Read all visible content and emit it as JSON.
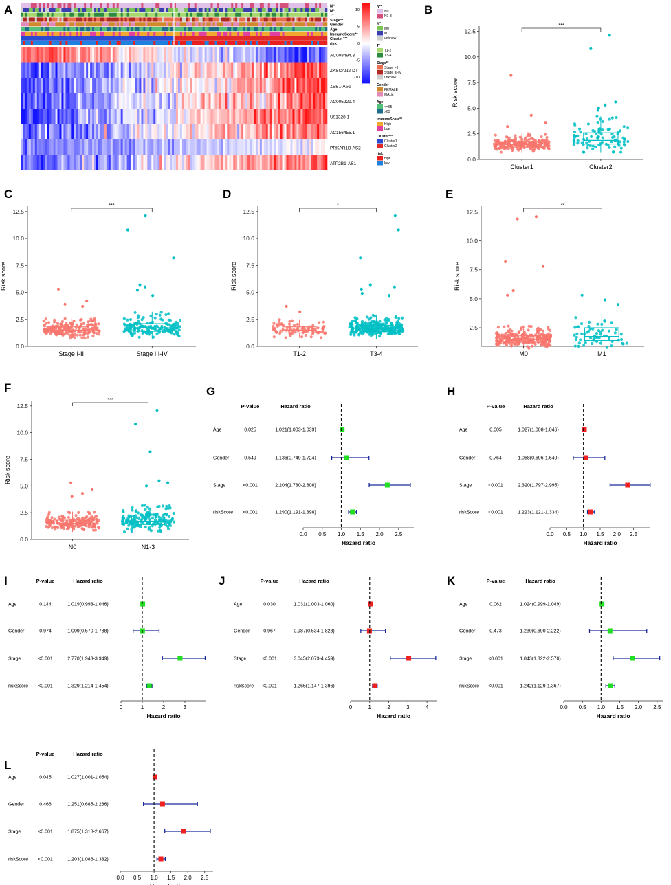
{
  "figure": {
    "panels": {
      "A": {
        "label": "A",
        "annotation_rows": [
          "N**",
          "M*",
          "T*",
          "Stage**",
          "Gender",
          "Age",
          "ImmuneScore**",
          "Cluster***",
          "risk"
        ],
        "genes": [
          "AC008494.3",
          "ZKSCAN2-DT",
          "ZEB1-AS1",
          "AC005229.4",
          "U91328.1",
          "AC156455.1",
          "PRKAR1B-AS2",
          "ATP2B1-AS1"
        ],
        "colorbar_ticks": [
          "10",
          "5",
          "0",
          "-5",
          "-10"
        ],
        "legend": [
          {
            "title": "N**",
            "items": [
              {
                "label": "N0",
                "color": "#e0c0e8"
              },
              {
                "label": "N1-3",
                "color": "#d4507a"
              }
            ]
          },
          {
            "title": "M*",
            "items": [
              {
                "label": "M0",
                "color": "#7cc458"
              },
              {
                "label": "M1",
                "color": "#3a3fb0"
              },
              {
                "label": "unknow",
                "color": "#cfcfcf"
              }
            ]
          },
          {
            "title": "T*",
            "items": [
              {
                "label": "T1-2",
                "color": "#a8d870"
              },
              {
                "label": "T3-4",
                "color": "#2d8a3e"
              }
            ]
          },
          {
            "title": "Stage**",
            "items": [
              {
                "label": "Stage I-II",
                "color": "#e86e4e"
              },
              {
                "label": "Stage III-IV",
                "color": "#b02a24"
              },
              {
                "label": "unknow",
                "color": "#cfcfcf"
              }
            ]
          },
          {
            "title": "Gender",
            "items": [
              {
                "label": "FEMALE",
                "color": "#d08a2e"
              },
              {
                "label": "MALE",
                "color": "#e08ab8"
              }
            ]
          },
          {
            "title": "Age",
            "items": [
              {
                "label": "<=65",
                "color": "#52c27a"
              },
              {
                "label": ">65",
                "color": "#1f6e8a"
              }
            ]
          },
          {
            "title": "ImmuneScore**",
            "items": [
              {
                "label": "High",
                "color": "#f0a830"
              },
              {
                "label": "Low",
                "color": "#e040a0"
              }
            ]
          },
          {
            "title": "Cluster***",
            "items": [
              {
                "label": "Cluster1",
                "color": "#2a4bd0"
              },
              {
                "label": "Cluster2",
                "color": "#e02a2a"
              }
            ]
          },
          {
            "title": "risk",
            "items": [
              {
                "label": "high",
                "color": "#e82020"
              },
              {
                "label": "low",
                "color": "#2080e0"
              }
            ]
          }
        ]
      },
      "boxplots": [
        {
          "label": "B",
          "ylabel": "Risk score",
          "yticks": [
            "0.0",
            "2.5",
            "5.0",
            "7.5",
            "10.0",
            "12.5"
          ],
          "sig": "***",
          "groups": [
            "Cluster1",
            "Cluster2"
          ],
          "medians": [
            1.45,
            1.85
          ],
          "q1": [
            1.2,
            1.5
          ],
          "q3": [
            1.75,
            2.6
          ],
          "wlo": [
            0.7,
            0.7
          ],
          "whi": [
            2.6,
            4.2
          ],
          "outliers": [
            [
              8.2,
              4.3,
              3.6,
              3.2
            ],
            [
              12.1,
              10.8,
              5.6,
              5.3,
              5.0,
              4.8
            ]
          ],
          "n": [
            210,
            90
          ]
        },
        {
          "label": "C",
          "ylabel": "Risk score",
          "yticks": [
            "0.0",
            "2.5",
            "5.0",
            "7.5",
            "10.0",
            "12.5"
          ],
          "sig": "***",
          "groups": [
            "Stage I-II",
            "Stage III-IV"
          ],
          "medians": [
            1.5,
            1.7
          ],
          "q1": [
            1.25,
            1.4
          ],
          "q3": [
            1.8,
            2.1
          ],
          "wlo": [
            0.7,
            0.7
          ],
          "whi": [
            2.6,
            3.2
          ],
          "outliers": [
            [
              5.3,
              4.2,
              3.9,
              3.7
            ],
            [
              12.1,
              10.8,
              8.2,
              5.7,
              5.5,
              5.2,
              4.7
            ]
          ],
          "n": [
            190,
            160
          ]
        },
        {
          "label": "D",
          "ylabel": "Risk score",
          "yticks": [
            "0.0",
            "2.5",
            "5.0",
            "7.5",
            "10.0",
            "12.5"
          ],
          "sig": "*",
          "groups": [
            "T1-2",
            "T3-4"
          ],
          "medians": [
            1.5,
            1.65
          ],
          "q1": [
            1.25,
            1.35
          ],
          "q3": [
            1.8,
            1.95
          ],
          "wlo": [
            0.8,
            0.7
          ],
          "whi": [
            2.5,
            2.9
          ],
          "outliers": [
            [
              3.7,
              3.2
            ],
            [
              12.1,
              10.8,
              8.2,
              5.7,
              5.5,
              5.3,
              4.9,
              4.7
            ]
          ],
          "n": [
            80,
            260
          ]
        },
        {
          "label": "E",
          "ylabel": "Risk score",
          "yticks": [
            "2.5",
            "5.0",
            "7.5",
            "10.0",
            "12.5"
          ],
          "sig": "**",
          "groups": [
            "M0",
            "M1"
          ],
          "medians": [
            1.5,
            1.75
          ],
          "q1": [
            1.25,
            1.4
          ],
          "q3": [
            1.8,
            2.5
          ],
          "wlo": [
            0.7,
            0.8
          ],
          "whi": [
            2.7,
            3.7
          ],
          "outliers": [
            [
              12.1,
              11.9,
              8.2,
              7.8,
              5.7,
              5.3
            ],
            [
              5.3,
              4.9,
              4.5
            ]
          ],
          "n": [
            270,
            60
          ]
        },
        {
          "label": "F",
          "ylabel": "Risk score",
          "yticks": [
            "0.0",
            "2.5",
            "5.0",
            "7.5",
            "10.0",
            "12.5"
          ],
          "sig": "***",
          "groups": [
            "N0",
            "N1-3"
          ],
          "medians": [
            1.5,
            1.7
          ],
          "q1": [
            1.25,
            1.4
          ],
          "q3": [
            1.8,
            2.1
          ],
          "wlo": [
            0.7,
            0.7
          ],
          "whi": [
            2.6,
            3.2
          ],
          "outliers": [
            [
              5.3,
              4.7,
              4.3,
              4.0
            ],
            [
              12.1,
              10.8,
              8.2,
              5.5,
              5.3,
              5.0
            ]
          ],
          "n": [
            180,
            170
          ]
        }
      ],
      "forests": [
        {
          "label": "G",
          "pcol": "P-value",
          "hrcol": "Hazard ratio",
          "xlabel": "Hazard ratio",
          "color": "#22dd22",
          "xticks": [
            "0.0",
            "0.5",
            "1.0",
            "1.5",
            "2.0",
            "2.5"
          ],
          "xmax": 2.9,
          "rows": [
            {
              "var": "Age",
              "p": "0.025",
              "text": "1.021(1.003-1.039)",
              "hr": 1.021,
              "lo": 1.003,
              "hi": 1.039
            },
            {
              "var": "Gender",
              "p": "0.549",
              "text": "1.136(0.749-1.724)",
              "hr": 1.136,
              "lo": 0.749,
              "hi": 1.724
            },
            {
              "var": "Stage",
              "p": "<0.001",
              "text": "2.204(1.730-2.808)",
              "hr": 2.204,
              "lo": 1.73,
              "hi": 2.808
            },
            {
              "var": "riskScore",
              "p": "<0.001",
              "text": "1.290(1.191-1.398)",
              "hr": 1.29,
              "lo": 1.191,
              "hi": 1.398
            }
          ]
        },
        {
          "label": "H",
          "pcol": "P-value",
          "hrcol": "Hazard ratio",
          "xlabel": "Hazard ratio",
          "color": "#ee2020",
          "xticks": [
            "0.0",
            "0.5",
            "1.0",
            "1.5",
            "2.0",
            "2.5"
          ],
          "xmax": 3.0,
          "rows": [
            {
              "var": "Age",
              "p": "0.005",
              "text": "1.027(1.008-1.046)",
              "hr": 1.027,
              "lo": 1.008,
              "hi": 1.046
            },
            {
              "var": "Gender",
              "p": "0.764",
              "text": "1.068(0.696-1.640)",
              "hr": 1.068,
              "lo": 0.696,
              "hi": 1.64
            },
            {
              "var": "Stage",
              "p": "<0.001",
              "text": "2.320(1.797-2.995)",
              "hr": 2.32,
              "lo": 1.797,
              "hi": 2.995
            },
            {
              "var": "riskScore",
              "p": "<0.001",
              "text": "1.223(1.121-1.334)",
              "hr": 1.223,
              "lo": 1.121,
              "hi": 1.334
            }
          ]
        },
        {
          "label": "I",
          "pcol": "P-value",
          "hrcol": "Hazard ratio",
          "xlabel": "Hazard ratio",
          "color": "#22dd22",
          "xticks": [
            "0",
            "1",
            "2",
            "3"
          ],
          "xmax": 4.0,
          "rows": [
            {
              "var": "Age",
              "p": "0.144",
              "text": "1.019(0.993-1.046)",
              "hr": 1.019,
              "lo": 0.993,
              "hi": 1.046
            },
            {
              "var": "Gender",
              "p": "0.974",
              "text": "1.009(0.570-1.788)",
              "hr": 1.009,
              "lo": 0.57,
              "hi": 1.788
            },
            {
              "var": "Stage",
              "p": "<0.001",
              "text": "2.770(1.943-3.949)",
              "hr": 2.77,
              "lo": 1.943,
              "hi": 3.949
            },
            {
              "var": "riskScore",
              "p": "<0.001",
              "text": "1.329(1.214-1.454)",
              "hr": 1.329,
              "lo": 1.214,
              "hi": 1.454
            }
          ]
        },
        {
          "label": "J",
          "pcol": "P-value",
          "hrcol": "Hazard ratio",
          "xlabel": "Hazard ratio",
          "color": "#ee2020",
          "xticks": [
            "0",
            "1",
            "2",
            "3",
            "4"
          ],
          "xmax": 4.5,
          "rows": [
            {
              "var": "Age",
              "p": "0.030",
              "text": "1.031(1.003-1.060)",
              "hr": 1.031,
              "lo": 1.003,
              "hi": 1.06
            },
            {
              "var": "Gender",
              "p": "0.967",
              "text": "0.987(0.534-1.823)",
              "hr": 0.987,
              "lo": 0.534,
              "hi": 1.823
            },
            {
              "var": "Stage",
              "p": "<0.001",
              "text": "3.045(2.079-4.459)",
              "hr": 3.045,
              "lo": 2.079,
              "hi": 4.459
            },
            {
              "var": "riskScore",
              "p": "<0.001",
              "text": "1.265(1.147-1.396)",
              "hr": 1.265,
              "lo": 1.147,
              "hi": 1.396
            }
          ]
        },
        {
          "label": "K",
          "pcol": "P-value",
          "hrcol": "Hazard ratio",
          "xlabel": "Hazard ratio",
          "color": "#22dd22",
          "xticks": [
            "0.0",
            "0.5",
            "1.0",
            "1.5",
            "2.0",
            "2.5"
          ],
          "xmax": 2.65,
          "rows": [
            {
              "var": "Age",
              "p": "0.062",
              "text": "1.024(0.999-1.049)",
              "hr": 1.024,
              "lo": 0.999,
              "hi": 1.049
            },
            {
              "var": "Gender",
              "p": "0.473",
              "text": "1.239(0.690-2.222)",
              "hr": 1.239,
              "lo": 0.69,
              "hi": 2.222
            },
            {
              "var": "Stage",
              "p": "<0.001",
              "text": "1.843(1.322-2.570)",
              "hr": 1.843,
              "lo": 1.322,
              "hi": 2.57
            },
            {
              "var": "riskScore",
              "p": "<0.001",
              "text": "1.242(1.129-1.367)",
              "hr": 1.242,
              "lo": 1.129,
              "hi": 1.367
            }
          ]
        },
        {
          "label": "L",
          "pcol": "P-value",
          "hrcol": "Hazard ratio",
          "xlabel": "Hazard ratio",
          "color": "#ee2020",
          "xticks": [
            "0.0",
            "0.5",
            "1.0",
            "1.5",
            "2.0",
            "2.5"
          ],
          "xmax": 2.75,
          "rows": [
            {
              "var": "Age",
              "p": "0.045",
              "text": "1.027(1.001-1.054)",
              "hr": 1.027,
              "lo": 1.001,
              "hi": 1.054
            },
            {
              "var": "Gender",
              "p": "0.466",
              "text": "1.251(0.685-2.286)",
              "hr": 1.251,
              "lo": 0.685,
              "hi": 2.286
            },
            {
              "var": "Stage",
              "p": "<0.001",
              "text": "1.875(1.318-2.667)",
              "hr": 1.875,
              "lo": 1.318,
              "hi": 2.667
            },
            {
              "var": "riskScore",
              "p": "<0.001",
              "text": "1.203(1.086-1.332)",
              "hr": 1.203,
              "lo": 1.086,
              "hi": 1.332
            }
          ]
        }
      ]
    }
  },
  "chart_data": [
    {
      "type": "heatmap",
      "title": "A",
      "rows": [
        "AC008494.3",
        "ZKSCAN2-DT",
        "ZEB1-AS1",
        "AC005229.4",
        "U91328.1",
        "AC156455.1",
        "PRKAR1B-AS2",
        "ATP2B1-AS1"
      ],
      "color_range": [
        -10,
        10
      ]
    },
    {
      "type": "scatter",
      "title": "B",
      "ylabel": "Risk score",
      "categories": [
        "Cluster1",
        "Cluster2"
      ],
      "medians": [
        1.45,
        1.85
      ],
      "ylim": [
        0,
        13
      ]
    },
    {
      "type": "scatter",
      "title": "C",
      "ylabel": "Risk score",
      "categories": [
        "Stage I-II",
        "Stage III-IV"
      ],
      "medians": [
        1.5,
        1.7
      ],
      "ylim": [
        0,
        13
      ]
    },
    {
      "type": "scatter",
      "title": "D",
      "ylabel": "Risk score",
      "categories": [
        "T1-2",
        "T3-4"
      ],
      "medians": [
        1.5,
        1.65
      ],
      "ylim": [
        0,
        13
      ]
    },
    {
      "type": "scatter",
      "title": "E",
      "ylabel": "Risk score",
      "categories": [
        "M0",
        "M1"
      ],
      "medians": [
        1.5,
        1.75
      ],
      "ylim": [
        0,
        13
      ]
    },
    {
      "type": "scatter",
      "title": "F",
      "ylabel": "Risk score",
      "categories": [
        "N0",
        "N1-3"
      ],
      "medians": [
        1.5,
        1.7
      ],
      "ylim": [
        0,
        13
      ]
    },
    {
      "type": "forest",
      "title": "G",
      "variables": [
        "Age",
        "Gender",
        "Stage",
        "riskScore"
      ],
      "hr": [
        1.021,
        1.136,
        2.204,
        1.29
      ]
    },
    {
      "type": "forest",
      "title": "H",
      "variables": [
        "Age",
        "Gender",
        "Stage",
        "riskScore"
      ],
      "hr": [
        1.027,
        1.068,
        2.32,
        1.223
      ]
    },
    {
      "type": "forest",
      "title": "I",
      "variables": [
        "Age",
        "Gender",
        "Stage",
        "riskScore"
      ],
      "hr": [
        1.019,
        1.009,
        2.77,
        1.329
      ]
    },
    {
      "type": "forest",
      "title": "J",
      "variables": [
        "Age",
        "Gender",
        "Stage",
        "riskScore"
      ],
      "hr": [
        1.031,
        0.987,
        3.045,
        1.265
      ]
    },
    {
      "type": "forest",
      "title": "K",
      "variables": [
        "Age",
        "Gender",
        "Stage",
        "riskScore"
      ],
      "hr": [
        1.024,
        1.239,
        1.843,
        1.242
      ]
    },
    {
      "type": "forest",
      "title": "L",
      "variables": [
        "Age",
        "Gender",
        "Stage",
        "riskScore"
      ],
      "hr": [
        1.027,
        1.251,
        1.875,
        1.203
      ]
    }
  ]
}
